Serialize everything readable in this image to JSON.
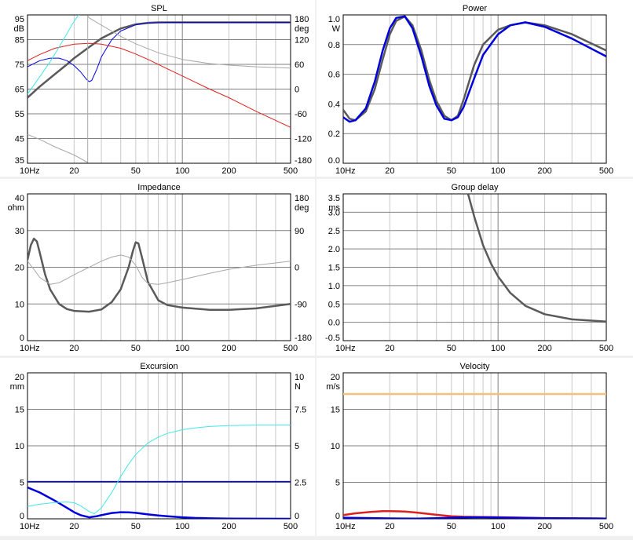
{
  "colors": {
    "dark": "#5a5a5a",
    "grey": "#a8a8a8",
    "blue": "#0000dd",
    "red": "#e02020",
    "cyan": "#40e8e8",
    "orange": "#f5c07a",
    "gridMajor": "#808080",
    "gridMinor": "#c8c8c8"
  },
  "chart_data": [
    {
      "id": "spl",
      "type": "line",
      "title": "SPL",
      "x_scale": "log",
      "xlim": [
        10,
        500
      ],
      "x_ticks": [
        "10Hz",
        "20",
        "50",
        "100",
        "200",
        "500"
      ],
      "ylim": [
        35,
        95
      ],
      "y_ticks": [
        "95",
        "85",
        "75",
        "65",
        "55",
        "45",
        "35"
      ],
      "y_unit": "dB",
      "y2lim": [
        -180,
        180
      ],
      "y2_ticks": [
        "180",
        "120",
        "60",
        "0",
        "-60",
        "-120",
        "-180"
      ],
      "y2_unit": "deg",
      "series": [
        {
          "color": "dark",
          "width": 2.5,
          "axis": "y",
          "x": [
            10,
            12,
            15,
            18,
            20,
            25,
            30,
            40,
            50,
            60,
            70,
            80,
            100,
            150,
            200,
            300,
            500
          ],
          "y": [
            61.5,
            66,
            71,
            75,
            77.5,
            82,
            85.5,
            89.5,
            91.2,
            91.8,
            92,
            92,
            92,
            92,
            92,
            92,
            92
          ]
        },
        {
          "color": "blue",
          "width": 1,
          "axis": "y",
          "x": [
            10,
            12,
            14,
            16,
            18,
            20,
            22,
            24,
            25,
            26,
            28,
            30,
            35,
            40,
            50,
            60,
            80,
            100,
            150,
            200,
            500
          ],
          "y": [
            74,
            76.5,
            77.5,
            77.5,
            76.5,
            74.5,
            72,
            69,
            68,
            68.5,
            73,
            78,
            85,
            88.5,
            91,
            91.7,
            92,
            92,
            92,
            92,
            92
          ]
        },
        {
          "color": "red",
          "width": 1,
          "axis": "y",
          "x": [
            10,
            12,
            15,
            20,
            25,
            30,
            40,
            50,
            60,
            80,
            100,
            150,
            200,
            300,
            500
          ],
          "y": [
            76.5,
            79,
            81.5,
            83.2,
            83.5,
            83.2,
            81.5,
            79.2,
            77,
            73.2,
            70.3,
            65,
            61.5,
            56,
            49.5
          ]
        },
        {
          "color": "cyan",
          "width": 1,
          "axis": "y",
          "x": [
            10,
            12,
            14,
            16,
            18,
            20,
            22
          ],
          "y": [
            63,
            70,
            76,
            82,
            87.5,
            92.5,
            96
          ]
        },
        {
          "color": "grey",
          "width": 1,
          "axis": "y2",
          "x": [
            10,
            12,
            15,
            20,
            24.5,
            24.5,
            25,
            30,
            40,
            50,
            70,
            100,
            150,
            200,
            300,
            500
          ],
          "y": [
            -110,
            -122,
            -140,
            -160,
            -178,
            178,
            173,
            155,
            128,
            110,
            88,
            72,
            62,
            58,
            54,
            51
          ]
        }
      ]
    },
    {
      "id": "power",
      "type": "line",
      "title": "Power",
      "x_scale": "log",
      "xlim": [
        10,
        500
      ],
      "x_ticks": [
        "10Hz",
        "20",
        "50",
        "100",
        "200",
        "500"
      ],
      "ylim": [
        0,
        1.0
      ],
      "y_ticks": [
        "1.0",
        "0.8",
        "0.6",
        "0.4",
        "0.2",
        "0.0"
      ],
      "y_unit": "W",
      "series": [
        {
          "color": "dark",
          "width": 2.5,
          "axis": "y",
          "x": [
            10,
            11,
            12,
            14,
            16,
            18,
            20,
            22,
            25,
            28,
            32,
            36,
            40,
            45,
            50,
            55,
            60,
            70,
            80,
            100,
            120,
            150,
            200,
            300,
            500
          ],
          "y": [
            0.36,
            0.3,
            0.29,
            0.35,
            0.5,
            0.7,
            0.87,
            0.96,
            0.99,
            0.93,
            0.76,
            0.56,
            0.42,
            0.32,
            0.29,
            0.32,
            0.43,
            0.66,
            0.8,
            0.9,
            0.93,
            0.95,
            0.93,
            0.87,
            0.76
          ]
        },
        {
          "color": "blue",
          "width": 2.5,
          "axis": "y",
          "x": [
            10,
            11,
            12,
            14,
            16,
            18,
            20,
            22,
            25,
            28,
            32,
            36,
            40,
            45,
            50,
            55,
            60,
            70,
            80,
            100,
            120,
            150,
            200,
            300,
            500
          ],
          "y": [
            0.31,
            0.28,
            0.29,
            0.37,
            0.55,
            0.76,
            0.91,
            0.98,
            0.99,
            0.91,
            0.72,
            0.52,
            0.39,
            0.3,
            0.29,
            0.31,
            0.38,
            0.57,
            0.73,
            0.87,
            0.93,
            0.95,
            0.92,
            0.84,
            0.72
          ]
        }
      ]
    },
    {
      "id": "impedance",
      "type": "line",
      "title": "Impedance",
      "x_scale": "log",
      "xlim": [
        10,
        500
      ],
      "x_ticks": [
        "10Hz",
        "20",
        "50",
        "100",
        "200",
        "500"
      ],
      "ylim": [
        0,
        40
      ],
      "y_ticks": [
        "40",
        "30",
        "20",
        "10",
        "0"
      ],
      "y_unit": "ohm",
      "y2lim": [
        -180,
        180
      ],
      "y2_ticks": [
        "180",
        "90",
        "0",
        "-90",
        "-180"
      ],
      "y2_unit": "deg",
      "series": [
        {
          "color": "dark",
          "width": 2.5,
          "axis": "y",
          "x": [
            10,
            10.5,
            11,
            11.5,
            12,
            13,
            14,
            16,
            18,
            20,
            25,
            30,
            35,
            40,
            45,
            48,
            50,
            52,
            55,
            60,
            70,
            80,
            100,
            150,
            200,
            300,
            500
          ],
          "y": [
            22,
            26,
            27.8,
            27,
            24,
            18,
            14,
            10,
            8.6,
            8.1,
            7.9,
            8.5,
            10.5,
            14,
            20,
            24.5,
            26.8,
            26.5,
            22.5,
            16,
            11,
            9.7,
            9,
            8.4,
            8.4,
            8.8,
            10
          ]
        },
        {
          "color": "grey",
          "width": 1,
          "axis": "y2",
          "x": [
            10,
            11,
            12,
            14,
            16,
            18,
            20,
            25,
            30,
            35,
            40,
            45,
            50,
            55,
            60,
            70,
            80,
            100,
            150,
            200,
            300,
            500
          ],
          "y": [
            15,
            -5,
            -25,
            -42,
            -38,
            -28,
            -18,
            0,
            15,
            25,
            30,
            25,
            5,
            -25,
            -40,
            -42,
            -38,
            -30,
            -15,
            -5,
            5,
            15
          ]
        }
      ]
    },
    {
      "id": "group_delay",
      "type": "line",
      "title": "Group delay",
      "x_scale": "log",
      "xlim": [
        10,
        500
      ],
      "x_ticks": [
        "10Hz",
        "20",
        "50",
        "100",
        "200",
        "500"
      ],
      "ylim": [
        -0.5,
        3.5
      ],
      "y_ticks": [
        "3.5",
        "3.0",
        "2.5",
        "2.0",
        "1.5",
        "1.0",
        "0.5",
        "0.0",
        "-0.5"
      ],
      "y_unit": "ms",
      "series": [
        {
          "color": "dark",
          "width": 2.5,
          "axis": "y",
          "x": [
            64,
            70,
            80,
            90,
            100,
            120,
            150,
            200,
            300,
            500
          ],
          "y": [
            3.5,
            2.9,
            2.1,
            1.6,
            1.25,
            0.8,
            0.45,
            0.22,
            0.08,
            0.02
          ]
        }
      ]
    },
    {
      "id": "excursion",
      "type": "line",
      "title": "Excursion",
      "x_scale": "log",
      "xlim": [
        10,
        500
      ],
      "x_ticks": [
        "10Hz",
        "20",
        "50",
        "100",
        "200",
        "500"
      ],
      "ylim": [
        0,
        20
      ],
      "y_ticks": [
        "20",
        "15",
        "10",
        "5",
        "0"
      ],
      "y_unit": "mm",
      "y2lim": [
        0,
        10
      ],
      "y2_ticks": [
        "10",
        "7.5",
        "5",
        "2.5",
        "0"
      ],
      "y2_unit": "N",
      "series": [
        {
          "color": "blue",
          "width": 1.5,
          "axis": "y",
          "x": [
            10,
            500
          ],
          "y": [
            5.1,
            5.1
          ]
        },
        {
          "color": "blue",
          "width": 2.5,
          "axis": "y",
          "x": [
            10,
            12,
            15,
            18,
            20,
            22,
            25,
            28,
            30,
            35,
            40,
            45,
            50,
            60,
            70,
            80,
            100,
            120,
            150,
            200,
            500
          ],
          "y": [
            4.3,
            3.6,
            2.5,
            1.5,
            0.9,
            0.5,
            0.2,
            0.35,
            0.5,
            0.8,
            0.9,
            0.88,
            0.82,
            0.6,
            0.45,
            0.35,
            0.2,
            0.12,
            0.06,
            0.03,
            0
          ]
        },
        {
          "color": "cyan",
          "width": 1,
          "axis": "y2",
          "x": [
            10,
            12,
            15,
            18,
            20,
            22,
            25,
            27,
            30,
            35,
            40,
            45,
            50,
            60,
            70,
            80,
            100,
            120,
            150,
            200,
            300,
            500
          ],
          "y": [
            0.85,
            1,
            1.12,
            1.15,
            1.1,
            0.9,
            0.5,
            0.35,
            0.75,
            1.8,
            2.9,
            3.75,
            4.4,
            5.2,
            5.6,
            5.85,
            6.1,
            6.22,
            6.32,
            6.38,
            6.42,
            6.42
          ]
        }
      ]
    },
    {
      "id": "velocity",
      "type": "line",
      "title": "Velocity",
      "x_scale": "log",
      "xlim": [
        10,
        500
      ],
      "x_ticks": [
        "10Hz",
        "20",
        "50",
        "100",
        "200",
        "500"
      ],
      "ylim": [
        0,
        20
      ],
      "y_ticks": [
        "20",
        "15",
        "10",
        "5",
        "0"
      ],
      "y_unit": "m/s",
      "series": [
        {
          "color": "orange",
          "width": 2.5,
          "axis": "y",
          "x": [
            10,
            500
          ],
          "y": [
            17.1,
            17.1
          ]
        },
        {
          "color": "red",
          "width": 2.5,
          "axis": "y",
          "x": [
            10,
            12,
            15,
            18,
            20,
            25,
            30,
            40,
            50,
            60,
            70,
            80,
            100,
            150,
            200,
            300,
            500
          ],
          "y": [
            0.5,
            0.75,
            0.95,
            1.05,
            1.05,
            1,
            0.85,
            0.55,
            0.35,
            0.28,
            0.26,
            0.25,
            0.22,
            0.15,
            0.1,
            0.06,
            0.03
          ]
        },
        {
          "color": "blue",
          "width": 2.5,
          "axis": "y",
          "x": [
            10,
            15,
            20,
            30,
            40,
            50,
            60,
            70,
            80,
            100,
            150,
            200,
            500
          ],
          "y": [
            0.15,
            0.1,
            0.05,
            0.02,
            0.08,
            0.15,
            0.18,
            0.2,
            0.2,
            0.18,
            0.12,
            0.08,
            0.03
          ]
        }
      ]
    }
  ]
}
